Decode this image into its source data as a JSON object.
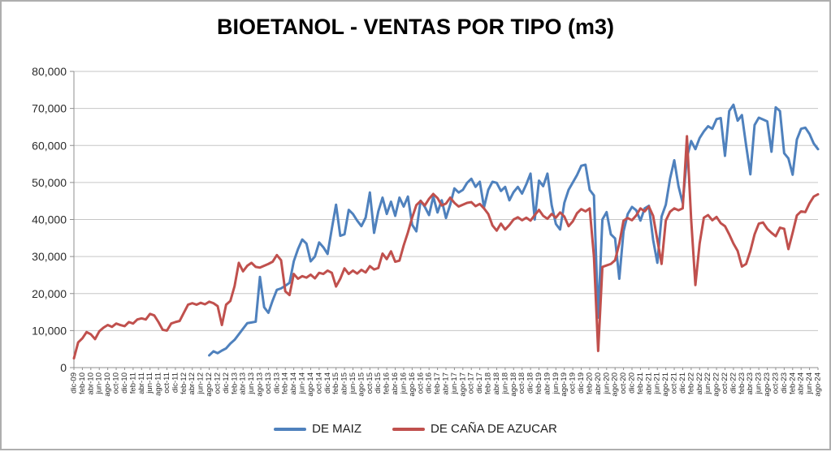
{
  "title": "BIOETANOL - VENTAS POR TIPO (m3)",
  "chart_data": {
    "type": "line",
    "title": "BIOETANOL - VENTAS POR TIPO (m3)",
    "xlabel": "",
    "ylabel": "",
    "ylim": [
      0,
      80000
    ],
    "y_tick_step": 10000,
    "grid": true,
    "legend_position": "bottom",
    "axis_color": "#8f8f8f",
    "grid_color": "#c6c6c6",
    "tick_text_color": "#2b2b2b",
    "y_tick_labels_top_to_bottom": [
      "80,000",
      "70,000",
      "60,000",
      "50,000",
      "40,000",
      "30,000",
      "20,000",
      "10,000",
      "0"
    ],
    "x_tick_labels": [
      "dic-09",
      "feb-10",
      "abr-10",
      "jun-10",
      "ago-10",
      "oct-10",
      "dic-10",
      "feb-11",
      "abr-11",
      "jun-11",
      "ago-11",
      "oct-11",
      "dic-11",
      "feb-12",
      "abr-12",
      "jun-12",
      "ago-12",
      "oct-12",
      "dic-12",
      "feb-13",
      "abr-13",
      "jun-13",
      "ago-13",
      "oct-13",
      "dic-13",
      "feb-14",
      "abr-14",
      "jun-14",
      "ago-14",
      "oct-14",
      "dic-14",
      "feb-15",
      "abr-15",
      "jun-15",
      "ago-15",
      "oct-15",
      "dic-15",
      "feb-16",
      "abr-16",
      "jun-16",
      "ago-16",
      "oct-16",
      "dic-16",
      "feb-17",
      "abr-17",
      "jun-17",
      "ago-17",
      "oct-17",
      "dic-17",
      "feb-18",
      "abr-18",
      "jun-18",
      "ago-18",
      "oct-18",
      "dic-18",
      "feb-19",
      "abr-19",
      "jun-19",
      "ago-19",
      "oct-19",
      "dic-19",
      "feb-20",
      "abr-20",
      "jun-20",
      "ago-20",
      "oct-20",
      "dic-20",
      "feb-21",
      "abr-21",
      "jun-21",
      "ago-21",
      "oct-21",
      "dic-21",
      "feb-22",
      "abr-22",
      "jun-22",
      "ago-22",
      "oct-22",
      "dic-22",
      "feb-23",
      "abr-23",
      "jun-23",
      "ago-23",
      "oct-23",
      "dic-23",
      "feb-24",
      "abr-24",
      "jun-24",
      "ago-24"
    ],
    "months_per_tick": 2,
    "series": [
      {
        "name": "DE MAIZ",
        "color": "#4F81BD",
        "values": [
          null,
          null,
          null,
          null,
          null,
          null,
          null,
          null,
          null,
          null,
          null,
          null,
          null,
          null,
          null,
          null,
          null,
          null,
          null,
          null,
          null,
          null,
          null,
          null,
          null,
          null,
          null,
          null,
          null,
          null,
          null,
          null,
          3300,
          4400,
          3900,
          4600,
          5200,
          6500,
          7500,
          9000,
          10500,
          12000,
          12200,
          12400,
          24500,
          16300,
          14800,
          18100,
          21000,
          21400,
          22100,
          22900,
          28700,
          32000,
          34600,
          33500,
          28700,
          30000,
          33800,
          32500,
          30700,
          37500,
          44000,
          35600,
          36000,
          42600,
          41500,
          39700,
          38200,
          40500,
          47300,
          36400,
          42200,
          45900,
          41500,
          44800,
          41000,
          45900,
          43500,
          46200,
          38600,
          36800,
          45100,
          43400,
          41200,
          46200,
          41900,
          45200,
          40400,
          44000,
          48400,
          47300,
          48000,
          49900,
          51000,
          48800,
          50200,
          43300,
          48000,
          50200,
          49900,
          47700,
          48800,
          45200,
          47400,
          48800,
          47000,
          49500,
          52400,
          40000,
          50500,
          49000,
          52400,
          43900,
          38800,
          37300,
          44500,
          48000,
          50000,
          52000,
          54500,
          54800,
          48000,
          46500,
          13500,
          40000,
          42000,
          36000,
          34900,
          24000,
          36800,
          41500,
          43400,
          42500,
          39700,
          43000,
          43700,
          34500,
          28300,
          40800,
          44000,
          51000,
          56000,
          49000,
          44400,
          56800,
          61200,
          59000,
          62000,
          63800,
          65200,
          64500,
          67100,
          67400,
          57200,
          69300,
          71000,
          66700,
          68200,
          60000,
          52200,
          65500,
          67500,
          67000,
          66500,
          58300,
          70300,
          69300,
          57900,
          56500,
          52100,
          61600,
          64500,
          64800,
          63100,
          60500,
          59000
        ]
      },
      {
        "name": "DE CAÑA DE AZUCAR",
        "color": "#C0504D",
        "values": [
          2500,
          6800,
          7900,
          9600,
          9000,
          7700,
          9800,
          10800,
          11500,
          11000,
          11900,
          11500,
          11200,
          12300,
          11900,
          13000,
          13300,
          13000,
          14500,
          14100,
          12300,
          10200,
          10000,
          11900,
          12300,
          12600,
          14800,
          17000,
          17400,
          17000,
          17500,
          17100,
          17800,
          17400,
          16600,
          11500,
          17000,
          18000,
          22000,
          28300,
          26000,
          27500,
          28300,
          27200,
          27000,
          27500,
          28000,
          28600,
          30400,
          29000,
          20600,
          19600,
          25300,
          24000,
          24700,
          24300,
          25100,
          24100,
          25600,
          25300,
          26200,
          25600,
          21900,
          24000,
          26800,
          25300,
          26200,
          25400,
          26400,
          25700,
          27400,
          26500,
          26900,
          30800,
          29300,
          31400,
          28600,
          28900,
          33000,
          36500,
          40500,
          43900,
          45000,
          43800,
          45600,
          46900,
          45800,
          43800,
          44300,
          45900,
          44500,
          43500,
          44000,
          44500,
          44700,
          43600,
          44200,
          43000,
          41500,
          38400,
          37000,
          38900,
          37300,
          38500,
          40000,
          40600,
          39800,
          40500,
          39700,
          41200,
          42600,
          41000,
          40200,
          41500,
          40500,
          41900,
          40800,
          38200,
          39500,
          41700,
          42800,
          42200,
          43000,
          30000,
          4500,
          27200,
          27600,
          28000,
          29000,
          33500,
          39700,
          40400,
          39800,
          41100,
          43000,
          42200,
          43500,
          41000,
          34500,
          28000,
          39700,
          42100,
          43000,
          42500,
          43000,
          62500,
          40000,
          22300,
          33500,
          40500,
          41200,
          39800,
          40700,
          39000,
          38200,
          36000,
          33500,
          31500,
          27300,
          28000,
          31500,
          36000,
          38900,
          39200,
          37500,
          36400,
          35500,
          37800,
          37500,
          32000,
          36400,
          41100,
          42200,
          42000,
          44400,
          46200,
          46800
        ]
      }
    ]
  },
  "legend": {
    "items": [
      {
        "label": "DE MAIZ"
      },
      {
        "label": "DE CAÑA DE AZUCAR"
      }
    ]
  }
}
